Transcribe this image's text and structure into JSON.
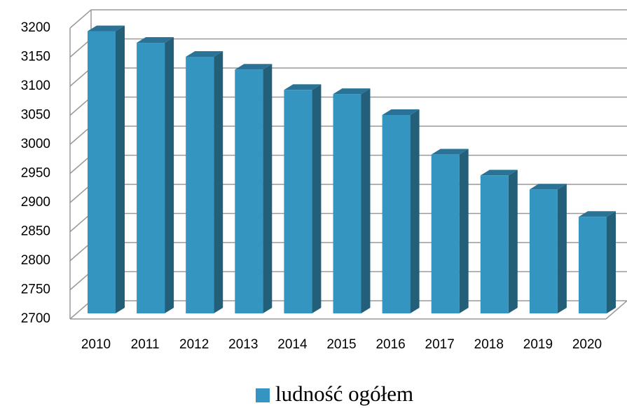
{
  "chart_data": {
    "type": "bar",
    "legend_position": "bottom",
    "categories": [
      "2010",
      "2011",
      "2012",
      "2013",
      "2014",
      "2015",
      "2016",
      "2017",
      "2018",
      "2019",
      "2020"
    ],
    "series": [
      {
        "name": "ludność ogółem",
        "color": "#3595c1",
        "values": [
          3185,
          3165,
          3141,
          3119,
          3084,
          3077,
          3041,
          2973,
          2937,
          2913,
          2866
        ]
      }
    ],
    "ylim": [
      2700,
      3200
    ],
    "yticks": [
      2700,
      2750,
      2800,
      2850,
      2900,
      2950,
      3000,
      3050,
      3100,
      3150,
      3200
    ],
    "grid": true
  }
}
